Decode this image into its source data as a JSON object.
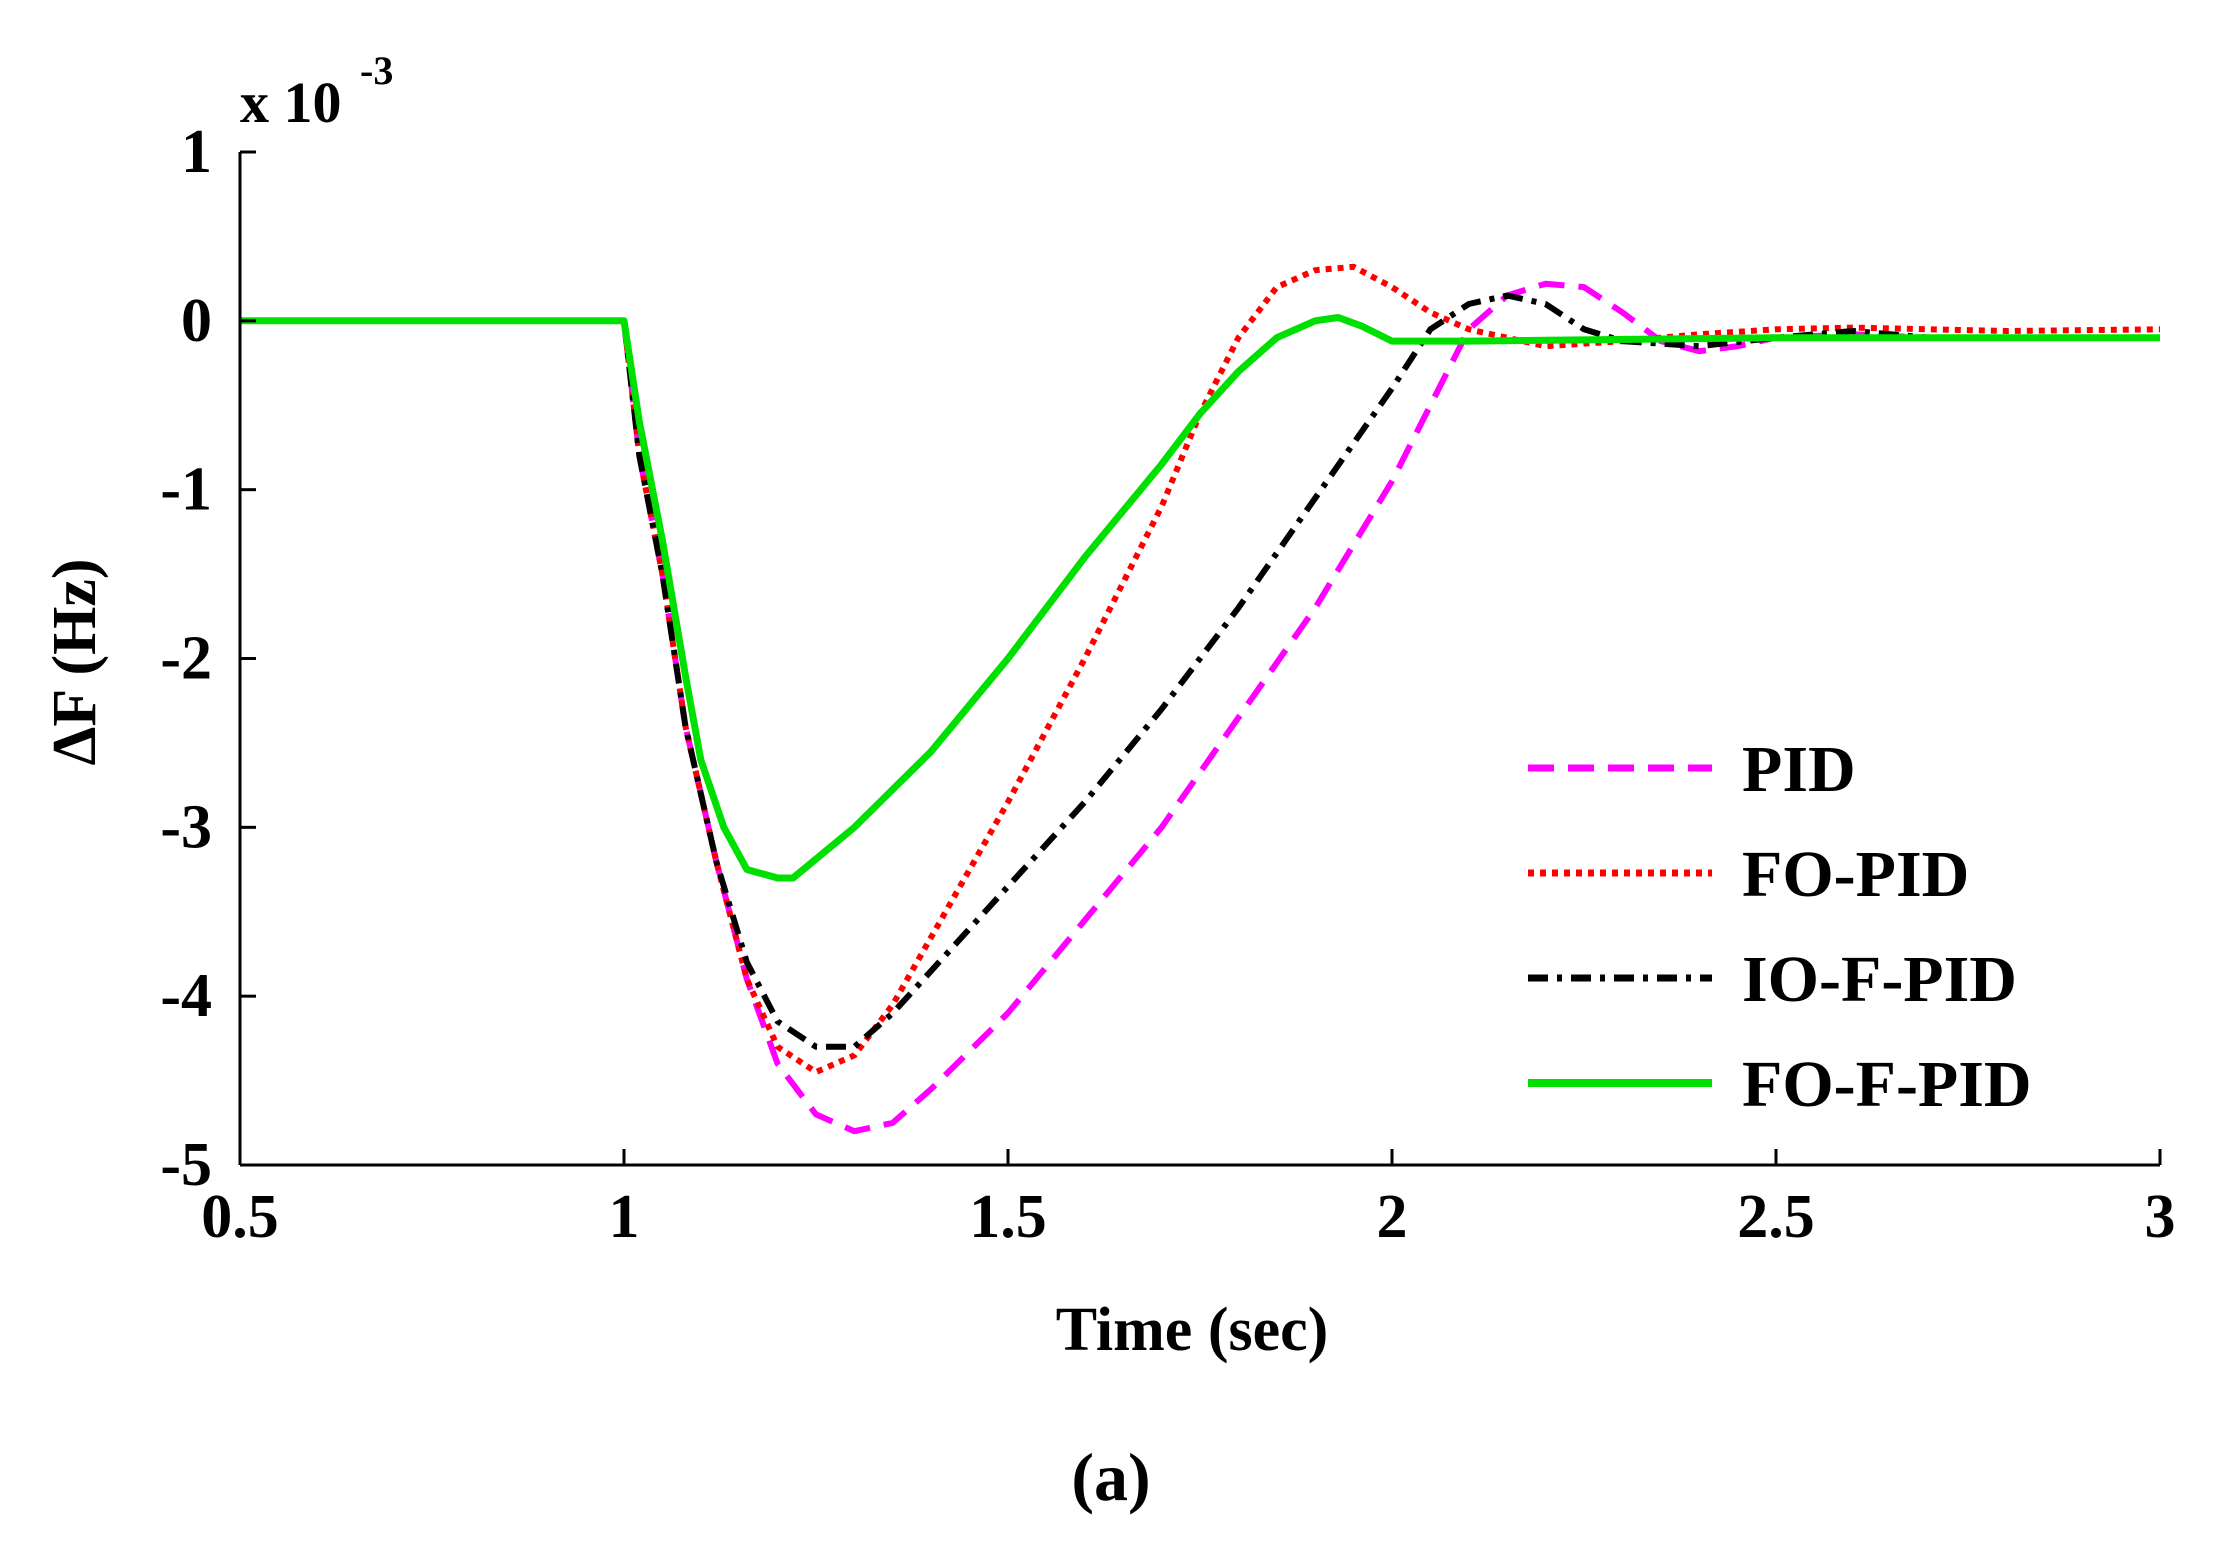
{
  "chart_data": {
    "type": "line",
    "title": "",
    "caption": "(a)",
    "xlabel": "Time (sec)",
    "ylabel": "ΔF (Hz)",
    "y_multiplier": {
      "base": "x 10",
      "exponent": "-3"
    },
    "xlim": [
      0.5,
      3
    ],
    "ylim": [
      -5,
      1
    ],
    "x_ticks": [
      "0.5",
      "1",
      "1.5",
      "2",
      "2.5",
      "3"
    ],
    "y_ticks": [
      "1",
      "0",
      "-1",
      "-2",
      "-3",
      "-4",
      "-5"
    ],
    "legend_position": "lower-right",
    "grid": false,
    "series": [
      {
        "name": "PID",
        "color": "#ff00ff",
        "style": "dashed",
        "points": [
          [
            0.5,
            0
          ],
          [
            1.0,
            0
          ],
          [
            1.02,
            -0.8
          ],
          [
            1.05,
            -1.5
          ],
          [
            1.08,
            -2.4
          ],
          [
            1.12,
            -3.2
          ],
          [
            1.16,
            -3.9
          ],
          [
            1.2,
            -4.4
          ],
          [
            1.25,
            -4.7
          ],
          [
            1.3,
            -4.8
          ],
          [
            1.35,
            -4.75
          ],
          [
            1.4,
            -4.55
          ],
          [
            1.5,
            -4.1
          ],
          [
            1.6,
            -3.55
          ],
          [
            1.7,
            -3.0
          ],
          [
            1.8,
            -2.35
          ],
          [
            1.9,
            -1.7
          ],
          [
            2.0,
            -0.95
          ],
          [
            2.05,
            -0.5
          ],
          [
            2.1,
            -0.05
          ],
          [
            2.15,
            0.15
          ],
          [
            2.2,
            0.22
          ],
          [
            2.25,
            0.2
          ],
          [
            2.3,
            0.05
          ],
          [
            2.35,
            -0.12
          ],
          [
            2.4,
            -0.18
          ],
          [
            2.45,
            -0.15
          ],
          [
            2.5,
            -0.1
          ],
          [
            2.6,
            -0.08
          ],
          [
            2.7,
            -0.1
          ],
          [
            3.0,
            -0.1
          ]
        ]
      },
      {
        "name": "FO-PID",
        "color": "#ff0000",
        "style": "dotted",
        "points": [
          [
            0.5,
            0
          ],
          [
            1.0,
            0
          ],
          [
            1.02,
            -0.8
          ],
          [
            1.05,
            -1.5
          ],
          [
            1.08,
            -2.4
          ],
          [
            1.12,
            -3.2
          ],
          [
            1.16,
            -3.9
          ],
          [
            1.2,
            -4.3
          ],
          [
            1.25,
            -4.45
          ],
          [
            1.3,
            -4.35
          ],
          [
            1.35,
            -4.05
          ],
          [
            1.4,
            -3.65
          ],
          [
            1.5,
            -2.85
          ],
          [
            1.6,
            -2.0
          ],
          [
            1.7,
            -1.1
          ],
          [
            1.75,
            -0.55
          ],
          [
            1.8,
            -0.1
          ],
          [
            1.85,
            0.2
          ],
          [
            1.9,
            0.3
          ],
          [
            1.95,
            0.32
          ],
          [
            2.0,
            0.2
          ],
          [
            2.05,
            0.05
          ],
          [
            2.1,
            -0.05
          ],
          [
            2.2,
            -0.15
          ],
          [
            2.3,
            -0.12
          ],
          [
            2.4,
            -0.08
          ],
          [
            2.5,
            -0.05
          ],
          [
            2.6,
            -0.04
          ],
          [
            2.8,
            -0.06
          ],
          [
            3.0,
            -0.05
          ]
        ]
      },
      {
        "name": "IO-F-PID",
        "color": "#000000",
        "style": "dashdot",
        "points": [
          [
            0.5,
            0
          ],
          [
            1.0,
            0
          ],
          [
            1.02,
            -0.8
          ],
          [
            1.05,
            -1.5
          ],
          [
            1.08,
            -2.4
          ],
          [
            1.12,
            -3.2
          ],
          [
            1.16,
            -3.8
          ],
          [
            1.2,
            -4.15
          ],
          [
            1.25,
            -4.3
          ],
          [
            1.3,
            -4.3
          ],
          [
            1.35,
            -4.1
          ],
          [
            1.4,
            -3.85
          ],
          [
            1.5,
            -3.35
          ],
          [
            1.6,
            -2.85
          ],
          [
            1.7,
            -2.3
          ],
          [
            1.8,
            -1.7
          ],
          [
            1.9,
            -1.05
          ],
          [
            2.0,
            -0.4
          ],
          [
            2.05,
            -0.05
          ],
          [
            2.1,
            0.1
          ],
          [
            2.15,
            0.15
          ],
          [
            2.2,
            0.1
          ],
          [
            2.25,
            -0.05
          ],
          [
            2.3,
            -0.12
          ],
          [
            2.4,
            -0.15
          ],
          [
            2.5,
            -0.1
          ],
          [
            2.6,
            -0.06
          ],
          [
            2.7,
            -0.1
          ],
          [
            3.0,
            -0.1
          ]
        ]
      },
      {
        "name": "FO-F-PID",
        "color": "#00e000",
        "style": "solid",
        "points": [
          [
            0.5,
            0
          ],
          [
            1.0,
            0
          ],
          [
            1.02,
            -0.6
          ],
          [
            1.05,
            -1.3
          ],
          [
            1.08,
            -2.1
          ],
          [
            1.1,
            -2.6
          ],
          [
            1.13,
            -3.0
          ],
          [
            1.16,
            -3.25
          ],
          [
            1.2,
            -3.3
          ],
          [
            1.22,
            -3.3
          ],
          [
            1.3,
            -3.0
          ],
          [
            1.4,
            -2.55
          ],
          [
            1.5,
            -2.0
          ],
          [
            1.6,
            -1.4
          ],
          [
            1.7,
            -0.85
          ],
          [
            1.75,
            -0.55
          ],
          [
            1.8,
            -0.3
          ],
          [
            1.85,
            -0.1
          ],
          [
            1.9,
            0.0
          ],
          [
            1.93,
            0.02
          ],
          [
            1.96,
            -0.03
          ],
          [
            2.0,
            -0.12
          ],
          [
            2.1,
            -0.12
          ],
          [
            2.5,
            -0.1
          ],
          [
            3.0,
            -0.1
          ]
        ]
      }
    ]
  }
}
